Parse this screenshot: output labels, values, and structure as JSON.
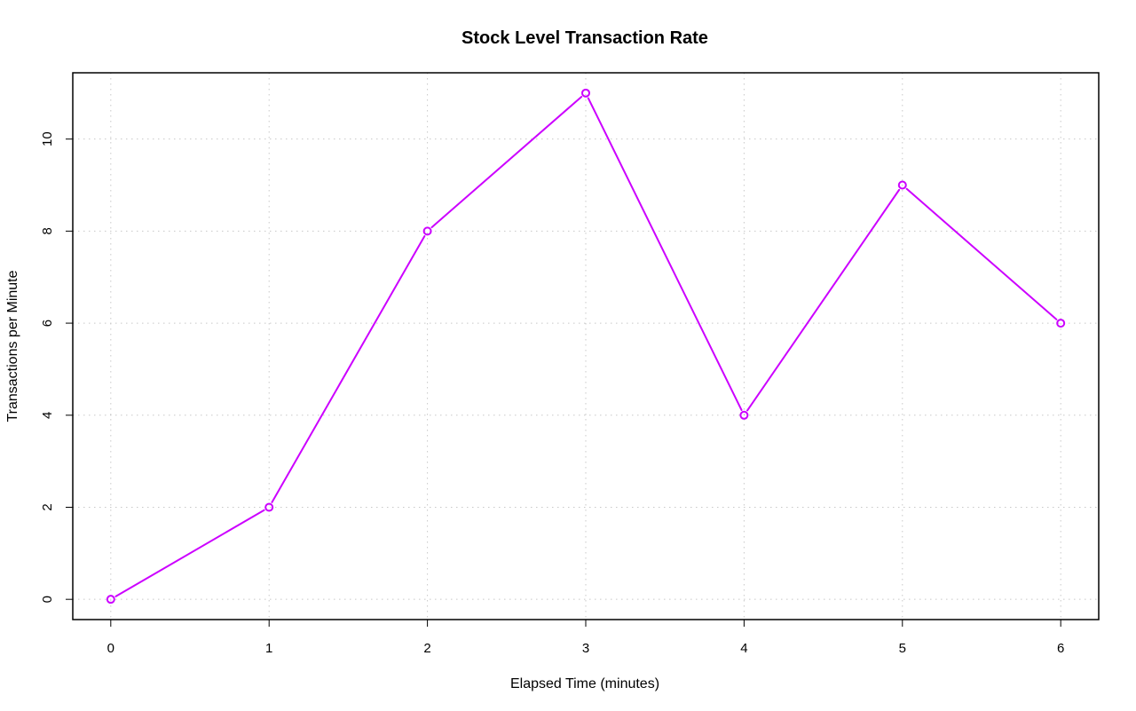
{
  "chart_data": {
    "type": "line",
    "title": "Stock Level Transaction Rate",
    "xlabel": "Elapsed Time (minutes)",
    "ylabel": "Transactions per Minute",
    "x": [
      0,
      1,
      2,
      3,
      4,
      5,
      6
    ],
    "series": [
      {
        "name": "",
        "values": [
          0,
          2,
          8,
          11,
          4,
          9,
          6
        ],
        "color": "#cc00ff",
        "marker": "open-circle"
      }
    ],
    "xlim": [
      -0.24,
      6.24
    ],
    "ylim": [
      -0.44,
      11.44
    ],
    "xticks": [
      0,
      1,
      2,
      3,
      4,
      5,
      6
    ],
    "yticks": [
      0,
      2,
      4,
      6,
      8,
      10
    ],
    "grid": true,
    "grid_color": "#c8c8c8",
    "legend": "none"
  }
}
